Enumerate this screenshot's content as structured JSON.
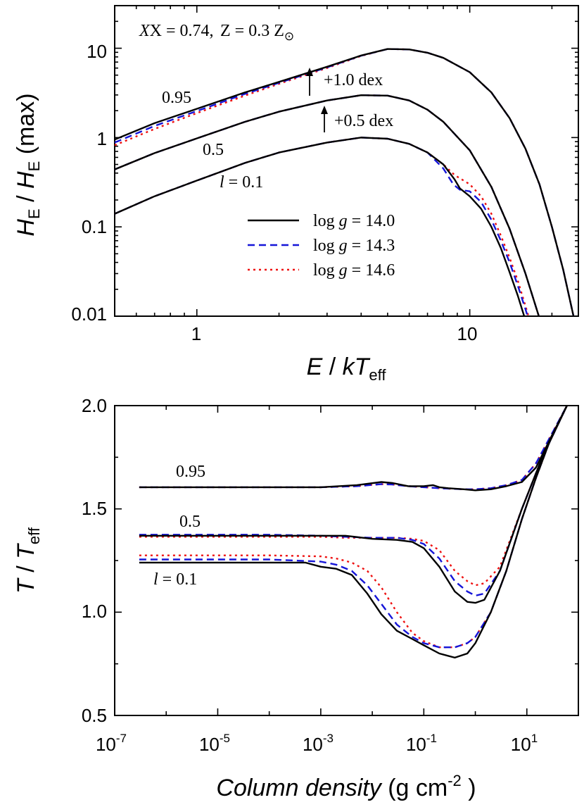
{
  "colors": {
    "logg_14_0": "#000000",
    "logg_14_3": "#1515d8",
    "logg_14_6": "#ee1111"
  },
  "chart_data": [
    {
      "type": "line",
      "xscale": "log",
      "yscale": "log",
      "xlim": [
        0.5,
        25
      ],
      "ylim": [
        0.01,
        30
      ],
      "x_ticks": [
        "1",
        "10"
      ],
      "y_ticks": [
        "0.01",
        "0.1",
        "1",
        "10"
      ],
      "xlabel": {
        "var": "E",
        "sep": " / ",
        "var2": "kT",
        "sub": "eff"
      },
      "ylabel": {
        "var": "H",
        "sub": "E",
        "sep": " / ",
        "var2": "H",
        "sub2": "E",
        "suffix": " (max)"
      },
      "annotations": {
        "composition_x": "X = 0.74,",
        "composition_z": "Z = 0.3 Z",
        "composition_sun": "⊙",
        "shift_high": "+1.0 dex",
        "shift_mid": "+0.5 dex",
        "label_095": "0.95",
        "label_05": "0.5",
        "label_01_var": "l",
        "label_01_val": " = 0.1"
      },
      "legend": {
        "placement": "center-right",
        "entries": [
          {
            "prefix": "log ",
            "var": "g",
            "value": " = 14.0",
            "style": "solid"
          },
          {
            "prefix": "log ",
            "var": "g",
            "value": " = 14.3",
            "style": "dashed"
          },
          {
            "prefix": "log ",
            "var": "g",
            "value": " = 14.6",
            "style": "dotted"
          }
        ]
      },
      "series": [
        {
          "l": 0.1,
          "logg": 14.0,
          "x": [
            0.5,
            0.7,
            1,
            1.5,
            2,
            3,
            4,
            5,
            6,
            7,
            8,
            8.8,
            9.2,
            10,
            11,
            12,
            13,
            14,
            15,
            16
          ],
          "y": [
            0.14,
            0.22,
            0.33,
            0.52,
            0.68,
            0.88,
            1.0,
            0.97,
            0.85,
            0.68,
            0.5,
            0.34,
            0.27,
            0.22,
            0.16,
            0.1,
            0.058,
            0.031,
            0.017,
            0.009
          ]
        },
        {
          "l": 0.1,
          "logg": 14.3,
          "x": [
            0.5,
            0.7,
            1,
            1.5,
            2,
            3,
            4,
            5,
            6,
            7,
            8,
            8.7,
            9.2,
            10,
            11,
            12,
            13,
            14,
            15,
            16,
            17
          ],
          "y": [
            0.14,
            0.22,
            0.33,
            0.52,
            0.68,
            0.88,
            1.0,
            0.97,
            0.85,
            0.68,
            0.45,
            0.3,
            0.26,
            0.25,
            0.19,
            0.12,
            0.07,
            0.04,
            0.022,
            0.012,
            0.0065
          ]
        },
        {
          "l": 0.1,
          "logg": 14.6,
          "x": [
            0.5,
            0.7,
            1,
            1.5,
            2,
            3,
            4,
            5,
            6,
            7,
            8,
            8.8,
            9.5,
            10,
            11,
            12,
            13,
            14,
            15,
            16,
            17
          ],
          "y": [
            0.14,
            0.22,
            0.33,
            0.52,
            0.68,
            0.88,
            1.0,
            0.97,
            0.85,
            0.68,
            0.5,
            0.38,
            0.33,
            0.3,
            0.22,
            0.14,
            0.08,
            0.045,
            0.025,
            0.013,
            0.007
          ]
        },
        {
          "l": 0.5,
          "logg": 14.0,
          "x": [
            0.5,
            0.7,
            1,
            1.5,
            2,
            3,
            4,
            5,
            6,
            7,
            8,
            10,
            12,
            14,
            16,
            18,
            19
          ],
          "y": [
            0.44,
            0.67,
            0.98,
            1.5,
            1.95,
            2.6,
            2.98,
            2.95,
            2.6,
            2.05,
            1.5,
            0.72,
            0.28,
            0.095,
            0.03,
            0.0095,
            0.005
          ]
        },
        {
          "l": 0.5,
          "logg": 14.3,
          "x": [
            0.5,
            0.7,
            1,
            1.5,
            2,
            3,
            4,
            5,
            6,
            7,
            8,
            10,
            12,
            14,
            16,
            18,
            19
          ],
          "y": [
            0.44,
            0.67,
            0.98,
            1.5,
            1.95,
            2.6,
            2.98,
            2.95,
            2.6,
            2.05,
            1.5,
            0.72,
            0.28,
            0.095,
            0.03,
            0.0095,
            0.005
          ]
        },
        {
          "l": 0.5,
          "logg": 14.6,
          "x": [
            0.5,
            0.7,
            1,
            1.5,
            2,
            3,
            4,
            5,
            6,
            7,
            8,
            10,
            12,
            14,
            16,
            18,
            19
          ],
          "y": [
            0.44,
            0.67,
            0.98,
            1.5,
            1.95,
            2.6,
            2.98,
            2.95,
            2.6,
            2.05,
            1.5,
            0.72,
            0.28,
            0.095,
            0.03,
            0.0095,
            0.005
          ]
        },
        {
          "l": 0.95,
          "logg": 14.0,
          "x": [
            0.5,
            0.7,
            1,
            1.5,
            2,
            3,
            4,
            5,
            6,
            7,
            8,
            10,
            12,
            14,
            16,
            18,
            20,
            22,
            24
          ],
          "y": [
            0.95,
            1.45,
            2.1,
            3.2,
            4.2,
            6.2,
            8.3,
            9.8,
            9.7,
            8.9,
            7.8,
            5.4,
            3.2,
            1.65,
            0.75,
            0.3,
            0.1,
            0.033,
            0.01
          ]
        },
        {
          "l": 0.95,
          "logg": 14.3,
          "x": [
            0.5,
            0.7,
            1,
            1.5,
            2,
            3,
            4,
            5,
            6,
            7,
            8,
            10,
            12,
            14,
            16,
            18,
            20,
            22,
            24
          ],
          "y": [
            0.88,
            1.35,
            1.98,
            3.08,
            4.1,
            6.1,
            8.25,
            9.8,
            9.7,
            8.9,
            7.8,
            5.4,
            3.2,
            1.65,
            0.75,
            0.3,
            0.1,
            0.033,
            0.01
          ]
        },
        {
          "l": 0.95,
          "logg": 14.6,
          "x": [
            0.5,
            0.7,
            1,
            1.5,
            2,
            3,
            4,
            5,
            6,
            7,
            8,
            10,
            12,
            14,
            16,
            18,
            20,
            22,
            24
          ],
          "y": [
            0.82,
            1.25,
            1.88,
            2.95,
            4.0,
            6.0,
            8.2,
            9.8,
            9.7,
            8.9,
            7.8,
            5.4,
            3.2,
            1.65,
            0.75,
            0.3,
            0.1,
            0.033,
            0.01
          ]
        }
      ]
    },
    {
      "type": "line",
      "xscale": "log",
      "yscale": "linear",
      "xlim": [
        1e-07,
        100
      ],
      "ylim": [
        0.5,
        2.0
      ],
      "x_ticks": [
        {
          "base": "10",
          "exp": "-7"
        },
        {
          "base": "10",
          "exp": "-5"
        },
        {
          "base": "10",
          "exp": "-3"
        },
        {
          "base": "10",
          "exp": "-1"
        },
        {
          "base": "10",
          "exp": "1"
        }
      ],
      "y_ticks": [
        "0.5",
        "1.0",
        "1.5",
        "2.0"
      ],
      "xlabel": {
        "var": "Column density",
        "units": "  (g cm",
        "exp": "-2",
        "close": " )"
      },
      "ylabel": {
        "var": "T",
        "sep": " / ",
        "var2": "T",
        "sub2": "eff"
      },
      "annotations": {
        "label_095": "0.95",
        "label_05": "0.5",
        "label_01_var": "l",
        "label_01_val": " = 0.1"
      },
      "series": [
        {
          "l": 0.1,
          "logg": 14.0,
          "x": [
            3e-07,
            1e-06,
            1e-05,
            0.0001,
            0.0005,
            0.001,
            0.002,
            0.004,
            0.008,
            0.015,
            0.03,
            0.06,
            0.1,
            0.2,
            0.4,
            0.7,
            1,
            2,
            4,
            8,
            15,
            30,
            60
          ],
          "y": [
            1.24,
            1.24,
            1.24,
            1.24,
            1.24,
            1.22,
            1.21,
            1.18,
            1.09,
            0.99,
            0.91,
            0.87,
            0.84,
            0.8,
            0.78,
            0.8,
            0.85,
            1.0,
            1.2,
            1.45,
            1.65,
            1.85,
            2.0
          ]
        },
        {
          "l": 0.1,
          "logg": 14.3,
          "x": [
            3e-07,
            1e-06,
            1e-05,
            0.0001,
            0.001,
            0.002,
            0.004,
            0.008,
            0.015,
            0.03,
            0.06,
            0.1,
            0.2,
            0.4,
            0.7,
            1,
            2,
            4,
            8,
            15,
            30,
            60
          ],
          "y": [
            1.255,
            1.255,
            1.255,
            1.255,
            1.245,
            1.23,
            1.2,
            1.13,
            1.04,
            0.94,
            0.88,
            0.85,
            0.83,
            0.83,
            0.85,
            0.88,
            1.0,
            1.2,
            1.45,
            1.65,
            1.85,
            2.0
          ]
        },
        {
          "l": 0.1,
          "logg": 14.6,
          "x": [
            3e-07,
            1e-06,
            1e-05,
            0.0001,
            0.001,
            0.002,
            0.004,
            0.008,
            0.015,
            0.03,
            0.06,
            0.1,
            0.2,
            0.4,
            0.7,
            1,
            2,
            4,
            8,
            15,
            30,
            60
          ],
          "y": [
            1.275,
            1.275,
            1.275,
            1.275,
            1.27,
            1.26,
            1.24,
            1.2,
            1.12,
            1.0,
            0.9,
            0.86,
            0.83,
            0.83,
            0.85,
            0.88,
            1.0,
            1.2,
            1.45,
            1.65,
            1.85,
            2.0
          ]
        },
        {
          "l": 0.5,
          "logg": 14.0,
          "x": [
            3e-07,
            1e-06,
            1e-05,
            0.0001,
            0.001,
            0.003,
            0.01,
            0.03,
            0.06,
            0.1,
            0.2,
            0.4,
            0.7,
            1,
            1.5,
            3,
            8,
            20,
            60
          ],
          "y": [
            1.37,
            1.37,
            1.37,
            1.37,
            1.37,
            1.37,
            1.355,
            1.35,
            1.34,
            1.31,
            1.22,
            1.1,
            1.05,
            1.045,
            1.06,
            1.2,
            1.5,
            1.75,
            2.0
          ]
        },
        {
          "l": 0.5,
          "logg": 14.3,
          "x": [
            3e-07,
            1e-06,
            1e-05,
            0.0001,
            0.001,
            0.003,
            0.01,
            0.03,
            0.06,
            0.1,
            0.2,
            0.4,
            0.7,
            1,
            1.5,
            3,
            8,
            20,
            60
          ],
          "y": [
            1.375,
            1.375,
            1.375,
            1.375,
            1.37,
            1.365,
            1.36,
            1.36,
            1.35,
            1.33,
            1.26,
            1.15,
            1.1,
            1.08,
            1.09,
            1.2,
            1.5,
            1.75,
            2.0
          ]
        },
        {
          "l": 0.5,
          "logg": 14.6,
          "x": [
            3e-07,
            1e-06,
            1e-05,
            0.0001,
            0.001,
            0.003,
            0.01,
            0.03,
            0.06,
            0.1,
            0.2,
            0.4,
            0.7,
            1,
            1.5,
            3,
            8,
            20,
            60
          ],
          "y": [
            1.365,
            1.365,
            1.365,
            1.365,
            1.365,
            1.36,
            1.36,
            1.36,
            1.355,
            1.345,
            1.3,
            1.2,
            1.15,
            1.13,
            1.14,
            1.22,
            1.5,
            1.75,
            2.0
          ]
        },
        {
          "l": 0.95,
          "logg": 14.0,
          "x": [
            3e-07,
            1e-05,
            0.001,
            0.005,
            0.015,
            0.025,
            0.05,
            0.1,
            0.15,
            0.2,
            0.3,
            0.6,
            1,
            2,
            4,
            8,
            15,
            30,
            60
          ],
          "y": [
            1.605,
            1.605,
            1.605,
            1.615,
            1.63,
            1.625,
            1.61,
            1.61,
            1.615,
            1.605,
            1.6,
            1.595,
            1.59,
            1.595,
            1.61,
            1.63,
            1.7,
            1.85,
            2.0
          ]
        },
        {
          "l": 0.95,
          "logg": 14.3,
          "x": [
            3e-07,
            1e-05,
            0.001,
            0.005,
            0.015,
            0.025,
            0.05,
            0.1,
            0.2,
            0.6,
            1,
            2,
            4,
            8,
            15,
            30,
            60
          ],
          "y": [
            1.605,
            1.605,
            1.605,
            1.61,
            1.62,
            1.618,
            1.61,
            1.605,
            1.6,
            1.595,
            1.595,
            1.6,
            1.615,
            1.64,
            1.72,
            1.86,
            2.0
          ]
        },
        {
          "l": 0.95,
          "logg": 14.6,
          "x": [
            3e-07,
            1e-05,
            0.001,
            0.005,
            0.015,
            0.025,
            0.05,
            0.1,
            0.2,
            0.6,
            1,
            2,
            4,
            8,
            15,
            30,
            60
          ],
          "y": [
            1.605,
            1.605,
            1.605,
            1.61,
            1.62,
            1.618,
            1.61,
            1.605,
            1.6,
            1.595,
            1.595,
            1.6,
            1.615,
            1.64,
            1.72,
            1.86,
            2.0
          ]
        }
      ]
    }
  ]
}
